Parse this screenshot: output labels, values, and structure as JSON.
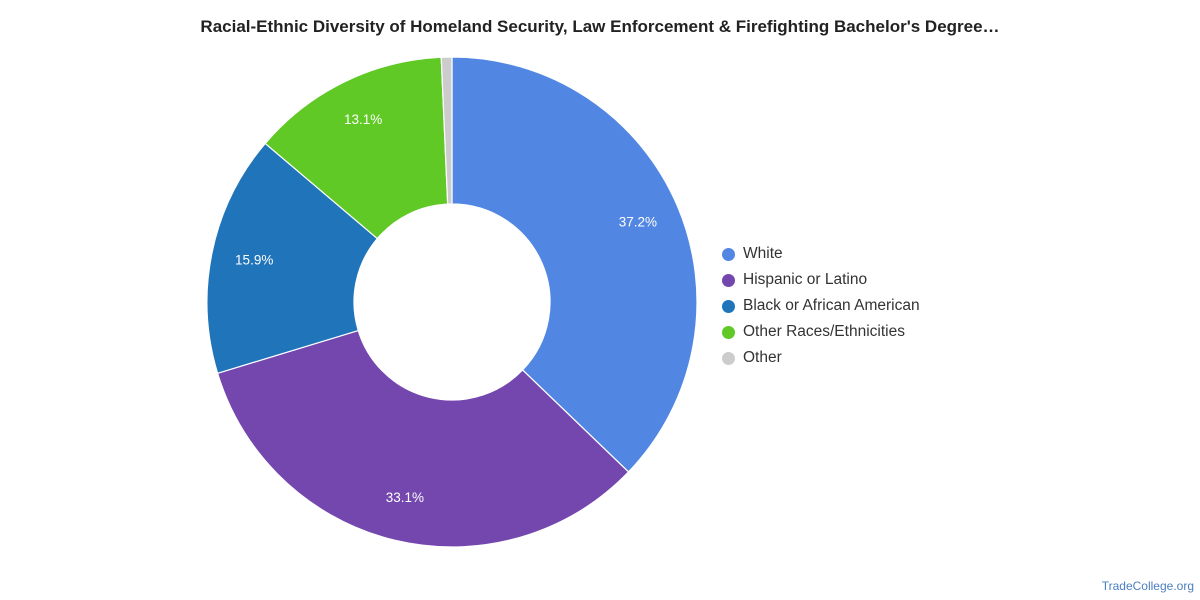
{
  "chart_data": {
    "type": "pie",
    "title": "Racial-Ethnic Diversity of Homeland Security, Law Enforcement & Firefighting Bachelor's Degree…",
    "donut": true,
    "legend_position": "right",
    "categories": [
      "White",
      "Hispanic or Latino",
      "Black or African American",
      "Other Races/Ethnicities",
      "Other"
    ],
    "values": [
      37.2,
      33.1,
      15.9,
      13.1,
      0.7
    ],
    "value_labels": [
      "37.2%",
      "33.1%",
      "15.9%",
      "13.1%",
      ""
    ],
    "colors": [
      "#5187e3",
      "#7447ae",
      "#1f74ba",
      "#60c926",
      "#cccccc"
    ]
  },
  "footer": {
    "source": "TradeCollege.org"
  }
}
